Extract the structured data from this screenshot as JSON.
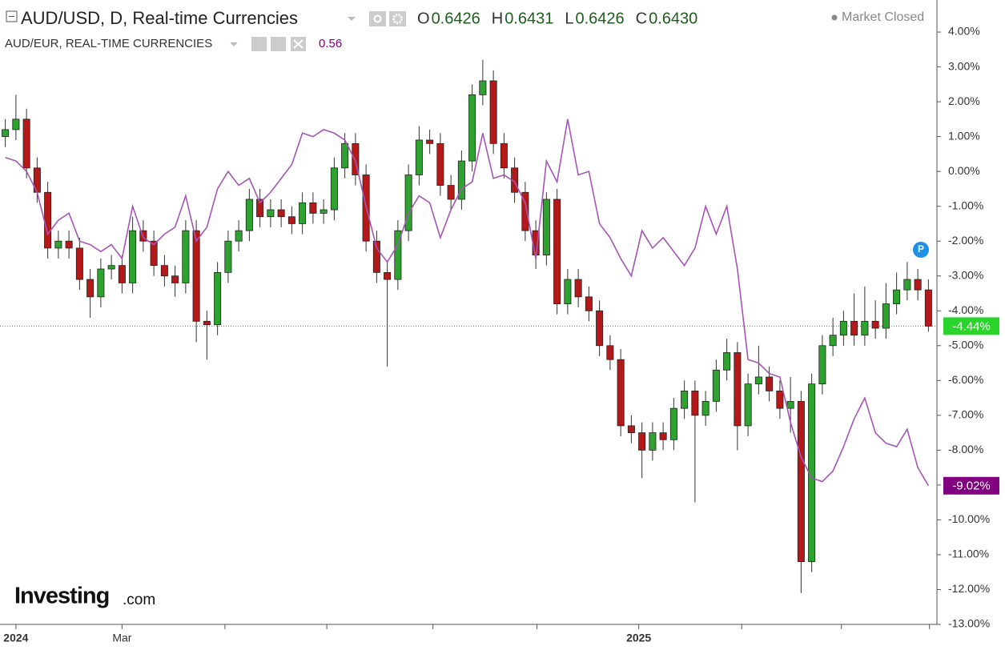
{
  "chart_data": {
    "type": "candlestick",
    "header": {
      "title": "AUD/USD, D, Real-time Currencies",
      "ohlc": [
        {
          "label": "O",
          "value": "0.6426"
        },
        {
          "label": "H",
          "value": "0.6431"
        },
        {
          "label": "L",
          "value": "0.6426"
        },
        {
          "label": "C",
          "value": "0.6430"
        }
      ],
      "status": "Market Closed",
      "compare_title": "AUD/EUR, REAL-TIME CURRENCIES",
      "compare_value": "0.56",
      "badge": "P",
      "logo": "Investing",
      "logo_suffix": ".com"
    },
    "xlim": [
      -0.5,
      87.5
    ],
    "xticks": [
      {
        "value": 1,
        "label": "2024"
      },
      {
        "value": 11,
        "label": "Mar"
      },
      {
        "value": 20.7,
        "label": null
      },
      {
        "value": 30.3,
        "label": null
      },
      {
        "value": 40.3,
        "label": null
      },
      {
        "value": 50.1,
        "label": null
      },
      {
        "value": 59.7,
        "label": "2025"
      },
      {
        "value": 69.4,
        "label": null
      },
      {
        "value": 78.8,
        "label": null
      },
      {
        "value": 87.1,
        "label": null
      }
    ],
    "ylim": [
      -13.0,
      4.92
    ],
    "yticks": [
      {
        "value": 4,
        "label": "4.00%"
      },
      {
        "value": 3,
        "label": "3.00%"
      },
      {
        "value": 2,
        "label": "2.00%"
      },
      {
        "value": 1,
        "label": "1.00%"
      },
      {
        "value": 0,
        "label": "0.00%"
      },
      {
        "value": -1,
        "label": "-1.00%"
      },
      {
        "value": -2,
        "label": "-2.00%"
      },
      {
        "value": -3,
        "label": "-3.00%"
      },
      {
        "value": -4,
        "label": "-4.00%"
      },
      {
        "value": -5,
        "label": "-5.00%"
      },
      {
        "value": -6,
        "label": "-6.00%"
      },
      {
        "value": -7,
        "label": "-7.00%"
      },
      {
        "value": -8,
        "label": "-8.00%"
      },
      {
        "value": -9,
        "label": "-9.00%"
      },
      {
        "value": -10,
        "label": "-10.00%"
      },
      {
        "value": -11,
        "label": "-11.00%"
      },
      {
        "value": -12,
        "label": "-12.00%"
      },
      {
        "value": -13,
        "label": "-13.00%"
      }
    ],
    "grid": false,
    "series": [
      {
        "name": "AUD/USD",
        "up_color": "#2ea22e",
        "down_color": "#b51818",
        "open": [
          1.0,
          1.2,
          1.5,
          0.1,
          -0.6,
          -2.2,
          -2.0,
          -2.2,
          -3.1,
          -3.6,
          -2.8,
          -2.7,
          -3.2,
          -1.7,
          -2.0,
          -2.7,
          -3.0,
          -3.2,
          -1.7,
          -4.3,
          -4.4,
          -2.9,
          -2.0,
          -1.7,
          -0.8,
          -1.3,
          -1.1,
          -1.3,
          -1.5,
          -0.9,
          -1.2,
          -1.1,
          0.1,
          0.8,
          -0.1,
          -2.0,
          -2.9,
          -3.1,
          -1.7,
          -0.1,
          0.9,
          0.8,
          -0.4,
          -0.8,
          0.3,
          2.2,
          2.6,
          0.8,
          0.1,
          -0.6,
          -1.7,
          -2.4,
          -0.8,
          -3.8,
          -3.1,
          -3.6,
          -4.0,
          -5.0,
          -5.4,
          -7.3,
          -7.5,
          -8.0,
          -7.5,
          -7.7,
          -6.8,
          -6.3,
          -7.0,
          -6.6,
          -5.7,
          -5.2,
          -7.3,
          -6.1,
          -5.9,
          -6.3,
          -6.8,
          -6.6,
          -11.2,
          -6.1,
          -5.0,
          -4.7,
          -4.3,
          -4.7,
          -4.3,
          -4.5,
          -3.8,
          -3.4,
          -3.1,
          -3.4
        ],
        "high": [
          1.5,
          2.2,
          1.8,
          0.4,
          -0.3,
          -1.7,
          -1.7,
          -1.9,
          -2.8,
          -2.5,
          -2.4,
          -2.4,
          -1.3,
          -1.4,
          -1.7,
          -2.4,
          -2.7,
          -1.4,
          -1.4,
          -4.0,
          -2.6,
          -1.7,
          -1.4,
          -0.5,
          -0.5,
          -0.8,
          -0.8,
          -1.0,
          -0.6,
          -0.6,
          -0.8,
          0.4,
          1.1,
          1.1,
          0.2,
          -1.7,
          -2.6,
          -1.4,
          0.2,
          1.3,
          1.2,
          1.1,
          -0.1,
          0.6,
          2.5,
          3.2,
          2.9,
          1.1,
          0.4,
          -0.3,
          -1.4,
          -0.6,
          -0.5,
          -2.8,
          -2.8,
          -3.3,
          -3.7,
          -4.7,
          -5.1,
          -7.0,
          -7.2,
          -7.2,
          -7.2,
          -6.5,
          -6.0,
          -6.0,
          -6.3,
          -5.4,
          -4.8,
          -4.9,
          -5.8,
          -5.0,
          -5.6,
          -6.0,
          -5.9,
          -6.3,
          -5.8,
          -4.7,
          -4.2,
          -4.0,
          -3.5,
          -3.3,
          -3.7,
          -3.2,
          -2.9,
          -2.6,
          -2.8,
          -3.1
        ],
        "low": [
          0.7,
          0.9,
          -0.2,
          -0.9,
          -2.5,
          -2.5,
          -2.5,
          -3.4,
          -4.2,
          -3.9,
          -3.1,
          -3.5,
          -3.5,
          -2.3,
          -3.0,
          -3.3,
          -3.6,
          -3.5,
          -4.9,
          -5.4,
          -4.7,
          -3.2,
          -2.3,
          -2.0,
          -1.6,
          -1.6,
          -1.6,
          -1.8,
          -1.8,
          -1.5,
          -1.5,
          -1.4,
          -0.2,
          -0.4,
          -2.3,
          -3.2,
          -5.6,
          -3.4,
          -2.0,
          -0.4,
          0.5,
          -0.7,
          -1.1,
          -1.1,
          0.0,
          1.9,
          0.5,
          -0.2,
          -0.9,
          -2.0,
          -2.8,
          -2.7,
          -4.1,
          -4.1,
          -3.9,
          -4.3,
          -5.3,
          -5.7,
          -7.6,
          -7.8,
          -8.8,
          -8.3,
          -8.0,
          -8.0,
          -7.1,
          -9.5,
          -7.3,
          -6.9,
          -6.0,
          -8.0,
          -7.6,
          -6.4,
          -6.6,
          -7.1,
          -7.5,
          -12.1,
          -11.5,
          -6.4,
          -5.3,
          -5.0,
          -5.0,
          -5.0,
          -4.8,
          -4.8,
          -4.1,
          -3.7,
          -3.7,
          -4.6
        ],
        "close": [
          1.2,
          1.5,
          0.1,
          -0.6,
          -2.2,
          -2.0,
          -2.2,
          -3.1,
          -3.6,
          -2.8,
          -2.7,
          -3.2,
          -1.7,
          -2.0,
          -2.7,
          -3.0,
          -3.2,
          -1.7,
          -4.3,
          -4.4,
          -2.9,
          -2.0,
          -1.7,
          -0.8,
          -1.3,
          -1.1,
          -1.3,
          -1.5,
          -0.9,
          -1.2,
          -1.1,
          0.1,
          0.8,
          -0.1,
          -2.0,
          -2.9,
          -3.1,
          -1.7,
          -0.1,
          0.9,
          0.8,
          -0.4,
          -0.8,
          0.3,
          2.2,
          2.6,
          0.8,
          0.1,
          -0.6,
          -1.7,
          -2.4,
          -0.8,
          -3.8,
          -3.1,
          -3.6,
          -4.0,
          -5.0,
          -5.4,
          -7.3,
          -7.5,
          -8.0,
          -7.5,
          -7.7,
          -6.8,
          -6.3,
          -7.0,
          -6.6,
          -5.7,
          -5.2,
          -7.3,
          -6.1,
          -5.9,
          -6.3,
          -6.8,
          -6.6,
          -11.2,
          -6.1,
          -5.0,
          -4.7,
          -4.3,
          -4.7,
          -4.3,
          -4.5,
          -3.8,
          -3.4,
          -3.1,
          -3.4,
          -4.44
        ],
        "last_label": {
          "value": -4.44,
          "label": "-4.44%"
        },
        "label_color": "#2bd42b"
      },
      {
        "name": "AUD/EUR",
        "type": "line",
        "color": "#a555b5",
        "values": [
          0.4,
          0.3,
          0.0,
          -0.6,
          -1.8,
          -1.4,
          -1.2,
          -2.0,
          -2.1,
          -2.3,
          -2.1,
          -2.5,
          -1.0,
          -1.9,
          -2.1,
          -1.8,
          -1.6,
          -0.7,
          -2.0,
          -1.6,
          -0.5,
          0.0,
          -0.4,
          -0.2,
          -0.9,
          -0.6,
          -0.2,
          0.2,
          1.1,
          1.0,
          1.2,
          1.1,
          0.9,
          0.3,
          -1.0,
          -2.2,
          -2.6,
          -2.1,
          -1.2,
          -0.7,
          -0.9,
          -1.9,
          -1.1,
          -0.5,
          -0.3,
          1.1,
          -0.2,
          -0.1,
          -0.3,
          -0.9,
          -2.5,
          0.3,
          -0.3,
          1.5,
          -0.1,
          0.0,
          -1.5,
          -1.9,
          -2.5,
          -3.0,
          -1.7,
          -2.2,
          -1.9,
          -2.3,
          -2.7,
          -2.2,
          -1.0,
          -1.8,
          -1.0,
          -2.8,
          -5.4,
          -5.5,
          -5.8,
          -5.9,
          -7.2,
          -8.2,
          -8.8,
          -8.9,
          -8.6,
          -7.9,
          -7.1,
          -6.5,
          -7.5,
          -7.8,
          -7.9,
          -7.4,
          -8.5,
          -9.02
        ],
        "last_label": {
          "value": -9.02,
          "label": "-9.02%"
        },
        "label_color": "#800080"
      }
    ]
  }
}
